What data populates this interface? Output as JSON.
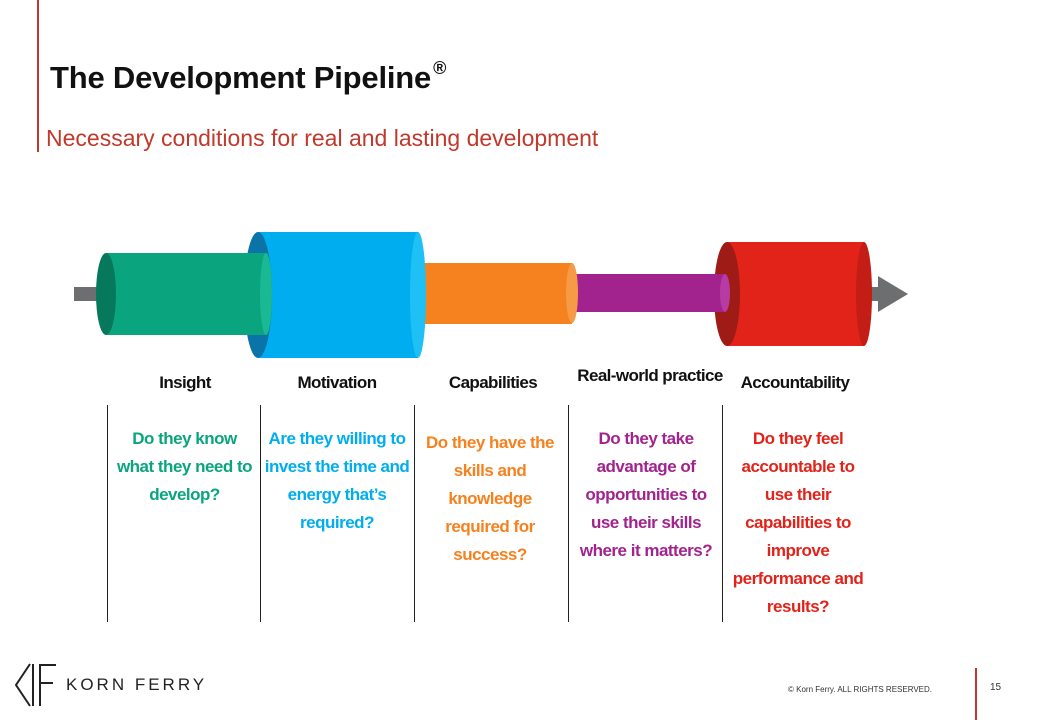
{
  "header": {
    "title": "The Development Pipeline",
    "title_mark": "®",
    "subtitle": "Necessary conditions for real and lasting development"
  },
  "colors": {
    "accent": "#c0392b",
    "insight": "#0aa57f",
    "motivation": "#00aeef",
    "capabilities": "#f5821f",
    "practice": "#a3238e",
    "accountability": "#e2231a",
    "shaft": "#6d6e70"
  },
  "stages": [
    {
      "heading": "Insight",
      "question": "Do they know what they need to develop?"
    },
    {
      "heading": "Motivation",
      "question": "Are they willing to invest the time and energy that’s required?"
    },
    {
      "heading": "Capabilities",
      "question": "Do they have the skills and knowledge required for success?"
    },
    {
      "heading": "Real-world practice",
      "question": "Do they take advantage of opportunities to use their skills where it matters?"
    },
    {
      "heading": "Accountability",
      "question": "Do they feel accountable to use their capabilities to improve performance and results?"
    }
  ],
  "footer": {
    "logo": "KORN FERRY",
    "copyright": "© Korn Ferry. ALL RIGHTS RESERVED.",
    "page_number": "15"
  }
}
